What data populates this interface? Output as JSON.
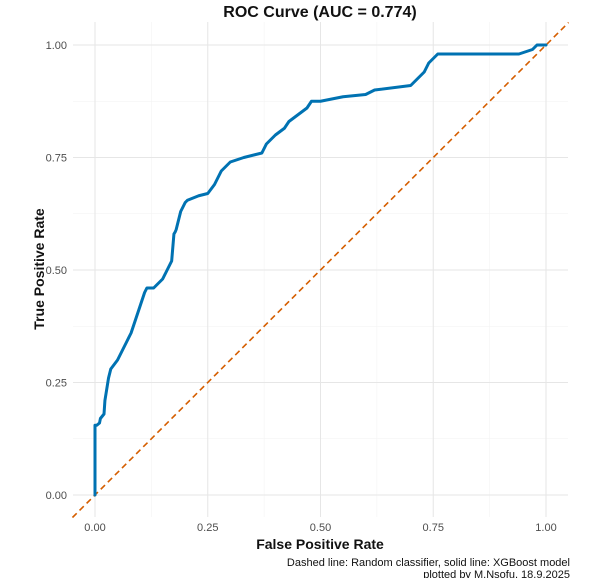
{
  "chart_data": {
    "type": "line",
    "title": "ROC Curve (AUC = 0.774)",
    "xlabel": "False Positive Rate",
    "ylabel": "True Positive Rate",
    "xlim": [
      0,
      1
    ],
    "ylim": [
      0,
      1
    ],
    "x_ticks": [
      "0.00",
      "0.25",
      "0.50",
      "0.75",
      "1.00"
    ],
    "y_ticks": [
      "0.00",
      "0.25",
      "0.50",
      "0.75",
      "1.00"
    ],
    "grid": true,
    "legend": "none",
    "captions": [
      "Dashed line: Random classifier, solid line: XGBoost model",
      "plotted by M.Nsofu, 18.9.2025"
    ],
    "series": [
      {
        "style": "solid",
        "color": "#0072B2",
        "x": [
          0.0,
          0.0,
          0.004,
          0.01,
          0.012,
          0.02,
          0.022,
          0.03,
          0.035,
          0.05,
          0.06,
          0.07,
          0.08,
          0.09,
          0.1,
          0.11,
          0.115,
          0.13,
          0.15,
          0.16,
          0.17,
          0.175,
          0.178,
          0.18,
          0.19,
          0.2,
          0.205,
          0.23,
          0.25,
          0.265,
          0.28,
          0.3,
          0.33,
          0.37,
          0.38,
          0.4,
          0.42,
          0.43,
          0.45,
          0.47,
          0.48,
          0.5,
          0.55,
          0.6,
          0.62,
          0.7,
          0.71,
          0.73,
          0.74,
          0.76,
          0.8,
          0.85,
          0.9,
          0.94,
          0.97,
          0.98,
          1.0
        ],
        "y": [
          0.0,
          0.155,
          0.155,
          0.16,
          0.17,
          0.18,
          0.21,
          0.26,
          0.28,
          0.3,
          0.32,
          0.34,
          0.36,
          0.39,
          0.42,
          0.45,
          0.46,
          0.46,
          0.48,
          0.5,
          0.52,
          0.58,
          0.585,
          0.59,
          0.63,
          0.65,
          0.655,
          0.665,
          0.67,
          0.69,
          0.72,
          0.74,
          0.75,
          0.76,
          0.78,
          0.8,
          0.815,
          0.83,
          0.845,
          0.86,
          0.875,
          0.875,
          0.885,
          0.89,
          0.9,
          0.91,
          0.92,
          0.94,
          0.96,
          0.98,
          0.98,
          0.98,
          0.98,
          0.98,
          0.99,
          1.0,
          1.0
        ]
      },
      {
        "style": "dashed",
        "color": "#D55E00",
        "x": [
          0,
          1
        ],
        "y": [
          0,
          1
        ]
      }
    ]
  }
}
